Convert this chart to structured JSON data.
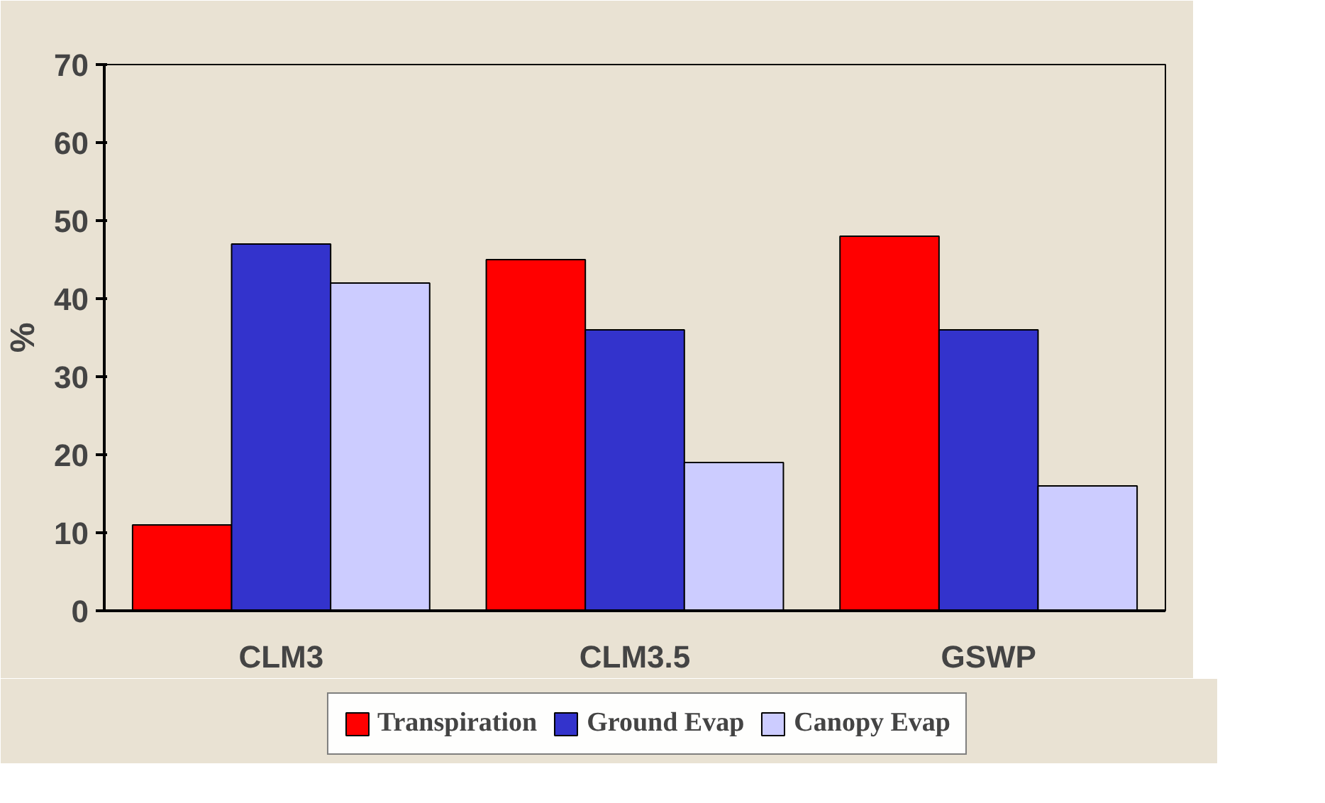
{
  "chart_data": {
    "type": "bar",
    "ylabel": "%",
    "categories": [
      "CLM3",
      "CLM3.5",
      "GSWP"
    ],
    "series": [
      {
        "name": "Transpiration",
        "color": "#ff0000",
        "values": [
          11,
          45,
          48
        ]
      },
      {
        "name": "Ground Evap",
        "color": "#3333cc",
        "values": [
          47,
          36,
          36
        ]
      },
      {
        "name": "Canopy Evap",
        "color": "#ccccff",
        "values": [
          42,
          19,
          16
        ]
      }
    ],
    "ylim": [
      0,
      70
    ],
    "yticks": [
      0,
      10,
      20,
      30,
      40,
      50,
      60,
      70
    ],
    "grid": false,
    "legend": "bottom"
  }
}
